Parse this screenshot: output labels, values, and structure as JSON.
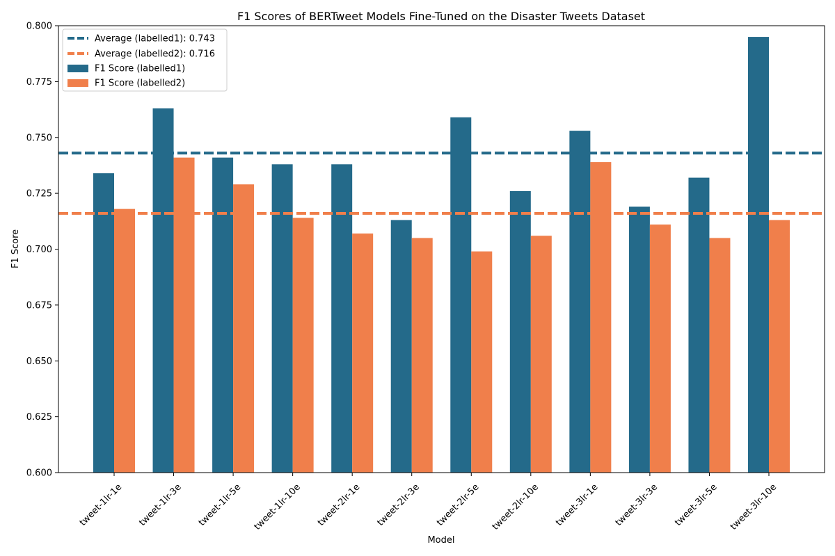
{
  "chart_data": {
    "type": "bar",
    "title": "F1 Scores of BERTweet Models Fine-Tuned on the Disaster Tweets Dataset",
    "xlabel": "Model",
    "ylabel": "F1 Score",
    "ylim": [
      0.6,
      0.8
    ],
    "yticks": [
      "0.600",
      "0.625",
      "0.650",
      "0.675",
      "0.700",
      "0.725",
      "0.750",
      "0.775",
      "0.800"
    ],
    "categories": [
      "tweet-1lr-1e",
      "tweet-1lr-3e",
      "tweet-1lr-5e",
      "tweet-1lr-10e",
      "tweet-2lr-1e",
      "tweet-2lr-3e",
      "tweet-2lr-5e",
      "tweet-2lr-10e",
      "tweet-3lr-1e",
      "tweet-3lr-3e",
      "tweet-3lr-5e",
      "tweet-3lr-10e"
    ],
    "series": [
      {
        "name": "F1 Score (labelled1)",
        "color": "#246a8a",
        "values": [
          0.734,
          0.763,
          0.741,
          0.738,
          0.738,
          0.713,
          0.759,
          0.726,
          0.753,
          0.719,
          0.732,
          0.795
        ]
      },
      {
        "name": "F1 Score (labelled2)",
        "color": "#f07f4b",
        "values": [
          0.718,
          0.741,
          0.729,
          0.714,
          0.707,
          0.705,
          0.699,
          0.706,
          0.739,
          0.711,
          0.705,
          0.713
        ]
      }
    ],
    "reference_lines": [
      {
        "name": "Average (labelled1): 0.743",
        "value": 0.743,
        "color": "#246a8a",
        "style": "dashed"
      },
      {
        "name": "Average (labelled2): 0.716",
        "value": 0.716,
        "color": "#f07f4b",
        "style": "dashed"
      }
    ],
    "legend_position": "top-left",
    "grid": false
  }
}
